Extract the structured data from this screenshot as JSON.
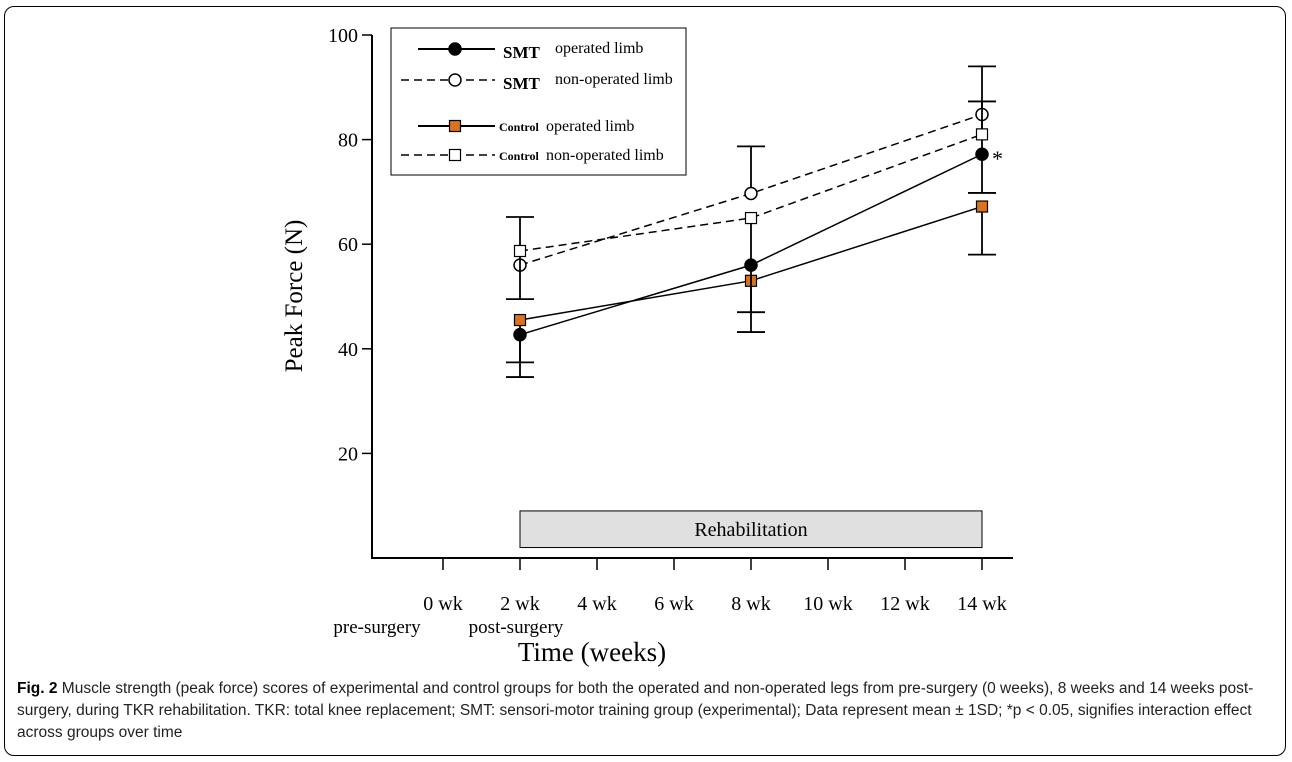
{
  "chart_data": {
    "type": "line",
    "xlabel": "Time (weeks)",
    "ylabel": "Peak Force  (N)",
    "xlim": [
      -2,
      16
    ],
    "ylim": [
      0,
      100
    ],
    "xticks": [
      0,
      2,
      4,
      6,
      8,
      10,
      12,
      14
    ],
    "xtick_labels": [
      "0 wk",
      "2 wk",
      "4 wk",
      "6 wk",
      "8 wk",
      "10 wk",
      "12 wk",
      "14 wk"
    ],
    "x_annotations": [
      "pre-surgery",
      "post-surgery"
    ],
    "yticks": [
      20,
      40,
      60,
      80,
      100
    ],
    "ytick_labels": [
      "20",
      "40",
      "60",
      "80",
      "100"
    ],
    "legend_position": "top-left",
    "series": [
      {
        "name": "operated limb",
        "group": "SMT",
        "marker": "filled-circle",
        "line": "solid",
        "color": "#000000",
        "x": [
          2,
          8,
          14
        ],
        "values": [
          42.7,
          56.0,
          77.2
        ],
        "err_upper": [
          null,
          null,
          94.0
        ],
        "err_lower": [
          34.6,
          null,
          69.8
        ]
      },
      {
        "name": "non-operated limb",
        "group": "SMT",
        "marker": "open-circle",
        "line": "dashed",
        "color": "#000000",
        "x": [
          2,
          8,
          14
        ],
        "values": [
          56.0,
          69.7,
          84.8
        ],
        "err_upper": [
          null,
          78.7,
          null
        ],
        "err_lower": [
          null,
          null,
          null
        ]
      },
      {
        "name": "operated limb",
        "group": "Control",
        "marker": "orange-square",
        "line": "solid",
        "color": "#d9731f",
        "x": [
          2,
          8,
          14
        ],
        "values": [
          45.5,
          53.0,
          67.2
        ],
        "err_upper": [
          null,
          null,
          null
        ],
        "err_lower": [
          37.4,
          43.2,
          58.0
        ]
      },
      {
        "name": "non-operated limb",
        "group": "Control",
        "marker": "open-square",
        "line": "dashed",
        "color": "#000000",
        "x": [
          2,
          8,
          14
        ],
        "values": [
          58.7,
          65.0,
          81.0
        ],
        "err_upper": [
          65.2,
          null,
          87.3
        ],
        "err_lower": [
          49.5,
          47.0,
          null
        ]
      }
    ],
    "annotations": [
      {
        "text": "*",
        "x": 14,
        "y": 77.2
      }
    ],
    "shaded_band": {
      "label": "Rehabilitation",
      "x_start": 2,
      "x_end": 14,
      "y_start": 2,
      "y_end": 9
    }
  },
  "legend": {
    "entries": [
      {
        "group": "SMT",
        "label": "operated limb"
      },
      {
        "group": "SMT",
        "label": "non-operated limb"
      },
      {
        "group": "Control",
        "label": "operated limb"
      },
      {
        "group": "Control",
        "label": "non-operated limb"
      }
    ]
  },
  "caption": {
    "figure_label": "Fig. 2",
    "text": "Muscle strength (peak force) scores of experimental and control groups for both the operated and non-operated legs from pre-surgery (0 weeks), 8 weeks and 14 weeks post-surgery, during TKR rehabilitation. TKR: total knee replacement; SMT: sensori-motor training group (experimental); Data represent mean ± 1SD; *p < 0.05, signifies interaction effect across groups over time"
  }
}
